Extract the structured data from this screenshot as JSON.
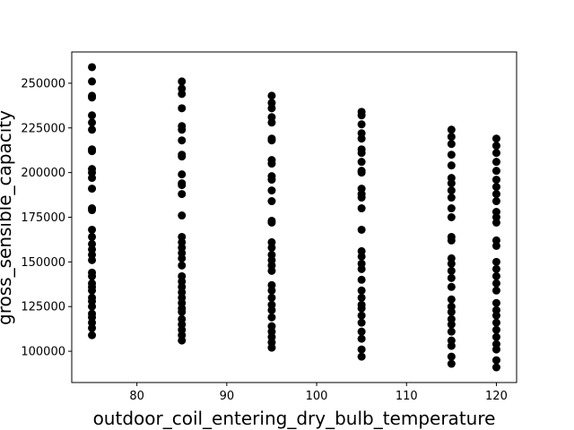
{
  "chart_data": {
    "type": "scatter",
    "xlabel": "outdoor_coil_entering_dry_bulb_temperature",
    "ylabel": "gross_sensible_capacity",
    "xlim": [
      72.75,
      122.25
    ],
    "ylim": [
      82500,
      267500
    ],
    "x_ticks": [
      80,
      90,
      100,
      110,
      120
    ],
    "y_ticks": [
      100000,
      125000,
      150000,
      175000,
      200000,
      225000,
      250000
    ],
    "x_tick_labels": [
      "80",
      "90",
      "100",
      "110",
      "120"
    ],
    "y_tick_labels": [
      "100000",
      "125000",
      "150000",
      "175000",
      "200000",
      "225000",
      "250000"
    ],
    "grid": false,
    "marker_color": "#000000",
    "series": [
      {
        "points": [
          [
            75,
            259000
          ],
          [
            75,
            251000
          ],
          [
            75,
            243000
          ],
          [
            75,
            242000
          ],
          [
            75,
            232000
          ],
          [
            75,
            228000
          ],
          [
            75,
            224000
          ],
          [
            75,
            213000
          ],
          [
            75,
            212000
          ],
          [
            75,
            202000
          ],
          [
            75,
            200000
          ],
          [
            75,
            197000
          ],
          [
            75,
            191000
          ],
          [
            75,
            180000
          ],
          [
            75,
            179000
          ],
          [
            75,
            168000
          ],
          [
            75,
            164000
          ],
          [
            75,
            160000
          ],
          [
            75,
            157000
          ],
          [
            75,
            154000
          ],
          [
            75,
            151000
          ],
          [
            75,
            144000
          ],
          [
            75,
            142000
          ],
          [
            75,
            138000
          ],
          [
            75,
            136000
          ],
          [
            75,
            134000
          ],
          [
            75,
            130000
          ],
          [
            75,
            128000
          ],
          [
            75,
            125000
          ],
          [
            75,
            121000
          ],
          [
            75,
            119000
          ],
          [
            75,
            116000
          ],
          [
            75,
            113000
          ],
          [
            75,
            109000
          ],
          [
            85,
            251000
          ],
          [
            85,
            247000
          ],
          [
            85,
            244000
          ],
          [
            85,
            236000
          ],
          [
            85,
            226000
          ],
          [
            85,
            224000
          ],
          [
            85,
            218000
          ],
          [
            85,
            210000
          ],
          [
            85,
            209000
          ],
          [
            85,
            199000
          ],
          [
            85,
            194000
          ],
          [
            85,
            193000
          ],
          [
            85,
            188000
          ],
          [
            85,
            176000
          ],
          [
            85,
            164000
          ],
          [
            85,
            161000
          ],
          [
            85,
            158000
          ],
          [
            85,
            155000
          ],
          [
            85,
            152000
          ],
          [
            85,
            148000
          ],
          [
            85,
            142000
          ],
          [
            85,
            139000
          ],
          [
            85,
            136000
          ],
          [
            85,
            133000
          ],
          [
            85,
            130000
          ],
          [
            85,
            127000
          ],
          [
            85,
            124000
          ],
          [
            85,
            122000
          ],
          [
            85,
            118000
          ],
          [
            85,
            115000
          ],
          [
            85,
            112000
          ],
          [
            85,
            109000
          ],
          [
            85,
            106000
          ],
          [
            95,
            243000
          ],
          [
            95,
            239000
          ],
          [
            95,
            236000
          ],
          [
            95,
            231000
          ],
          [
            95,
            228000
          ],
          [
            95,
            219000
          ],
          [
            95,
            218000
          ],
          [
            95,
            207000
          ],
          [
            95,
            205000
          ],
          [
            95,
            198000
          ],
          [
            95,
            196000
          ],
          [
            95,
            190000
          ],
          [
            95,
            184000
          ],
          [
            95,
            173000
          ],
          [
            95,
            172000
          ],
          [
            95,
            161000
          ],
          [
            95,
            158000
          ],
          [
            95,
            154000
          ],
          [
            95,
            151000
          ],
          [
            95,
            148000
          ],
          [
            95,
            145000
          ],
          [
            95,
            137000
          ],
          [
            95,
            134000
          ],
          [
            95,
            130000
          ],
          [
            95,
            126000
          ],
          [
            95,
            123000
          ],
          [
            95,
            119000
          ],
          [
            95,
            114000
          ],
          [
            95,
            111000
          ],
          [
            95,
            108000
          ],
          [
            95,
            105000
          ],
          [
            95,
            102000
          ],
          [
            105,
            234000
          ],
          [
            105,
            232000
          ],
          [
            105,
            227000
          ],
          [
            105,
            222000
          ],
          [
            105,
            219000
          ],
          [
            105,
            213000
          ],
          [
            105,
            211000
          ],
          [
            105,
            206000
          ],
          [
            105,
            201000
          ],
          [
            105,
            200000
          ],
          [
            105,
            191000
          ],
          [
            105,
            188000
          ],
          [
            105,
            186000
          ],
          [
            105,
            180000
          ],
          [
            105,
            168000
          ],
          [
            105,
            156000
          ],
          [
            105,
            153000
          ],
          [
            105,
            149000
          ],
          [
            105,
            146000
          ],
          [
            105,
            140000
          ],
          [
            105,
            134000
          ],
          [
            105,
            130000
          ],
          [
            105,
            126000
          ],
          [
            105,
            124000
          ],
          [
            105,
            120000
          ],
          [
            105,
            116000
          ],
          [
            105,
            111000
          ],
          [
            105,
            107000
          ],
          [
            105,
            101000
          ],
          [
            105,
            97000
          ],
          [
            115,
            224000
          ],
          [
            115,
            220000
          ],
          [
            115,
            216000
          ],
          [
            115,
            210000
          ],
          [
            115,
            204000
          ],
          [
            115,
            197000
          ],
          [
            115,
            194000
          ],
          [
            115,
            190000
          ],
          [
            115,
            186000
          ],
          [
            115,
            180000
          ],
          [
            115,
            175000
          ],
          [
            115,
            164000
          ],
          [
            115,
            162000
          ],
          [
            115,
            152000
          ],
          [
            115,
            149000
          ],
          [
            115,
            145000
          ],
          [
            115,
            141000
          ],
          [
            115,
            136000
          ],
          [
            115,
            129000
          ],
          [
            115,
            125000
          ],
          [
            115,
            122000
          ],
          [
            115,
            118000
          ],
          [
            115,
            115000
          ],
          [
            115,
            111000
          ],
          [
            115,
            106000
          ],
          [
            115,
            103000
          ],
          [
            115,
            97000
          ],
          [
            115,
            93000
          ],
          [
            120,
            219000
          ],
          [
            120,
            215000
          ],
          [
            120,
            211000
          ],
          [
            120,
            206000
          ],
          [
            120,
            201000
          ],
          [
            120,
            196000
          ],
          [
            120,
            192000
          ],
          [
            120,
            188000
          ],
          [
            120,
            184000
          ],
          [
            120,
            178000
          ],
          [
            120,
            175000
          ],
          [
            120,
            172000
          ],
          [
            120,
            162000
          ],
          [
            120,
            159000
          ],
          [
            120,
            150000
          ],
          [
            120,
            146000
          ],
          [
            120,
            142000
          ],
          [
            120,
            138000
          ],
          [
            120,
            134000
          ],
          [
            120,
            127000
          ],
          [
            120,
            123000
          ],
          [
            120,
            120000
          ],
          [
            120,
            116000
          ],
          [
            120,
            112000
          ],
          [
            120,
            108000
          ],
          [
            120,
            104000
          ],
          [
            120,
            101000
          ],
          [
            120,
            95000
          ],
          [
            120,
            91000
          ]
        ]
      }
    ]
  }
}
